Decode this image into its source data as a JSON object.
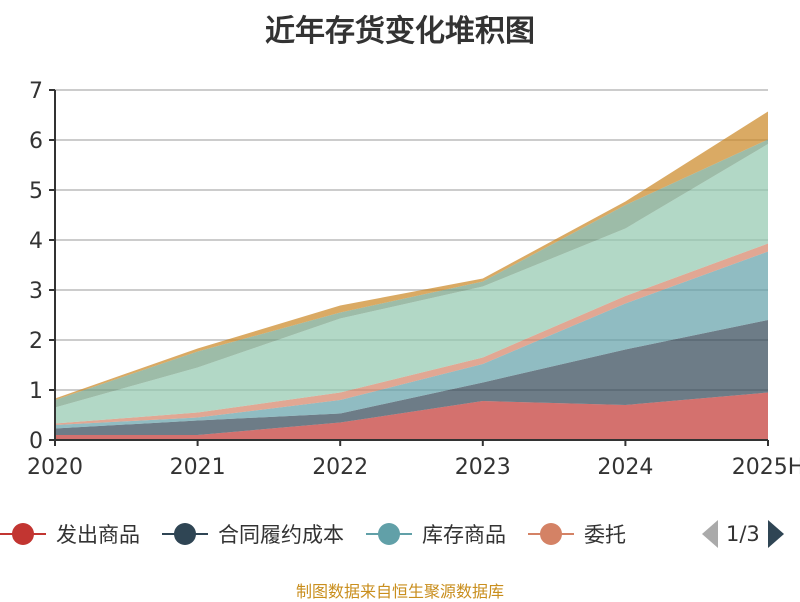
{
  "chart_data": {
    "type": "area",
    "stacked": true,
    "title": "近年存货变化堆积图",
    "categories": [
      "2020",
      "2021",
      "2022",
      "2023",
      "2024",
      "2025H"
    ],
    "ylim": [
      0,
      7
    ],
    "yticks": [
      "0",
      "1",
      "2",
      "3",
      "4",
      "5",
      "6",
      "7"
    ],
    "grid": true,
    "legend_position": "bottom",
    "series": [
      {
        "name": "发出商品",
        "color": "#c23531",
        "values": [
          0.1,
          0.1,
          0.35,
          0.78,
          0.7,
          0.95
        ]
      },
      {
        "name": "合同履约成本",
        "color": "#2f4554",
        "values": [
          0.13,
          0.29,
          0.18,
          0.37,
          1.11,
          1.45
        ]
      },
      {
        "name": "库存商品",
        "color": "#61a0a8",
        "values": [
          0.07,
          0.06,
          0.27,
          0.37,
          0.92,
          1.37
        ]
      },
      {
        "name": "委托",
        "color": "#d48265",
        "values": [
          0.03,
          0.1,
          0.15,
          0.13,
          0.15,
          0.16
        ]
      },
      {
        "color": "#91c7ae",
        "values": [
          0.32,
          0.9,
          1.48,
          1.42,
          1.35,
          1.99
        ]
      },
      {
        "color": "#749f83",
        "values": [
          0.15,
          0.32,
          0.12,
          0.1,
          0.47,
          0.09
        ]
      },
      {
        "color": "#ca8622",
        "values": [
          0.03,
          0.06,
          0.14,
          0.06,
          0.07,
          0.56
        ]
      }
    ]
  },
  "legend": {
    "page": "1/3"
  },
  "footer": "制图数据来自恒生聚源数据库"
}
